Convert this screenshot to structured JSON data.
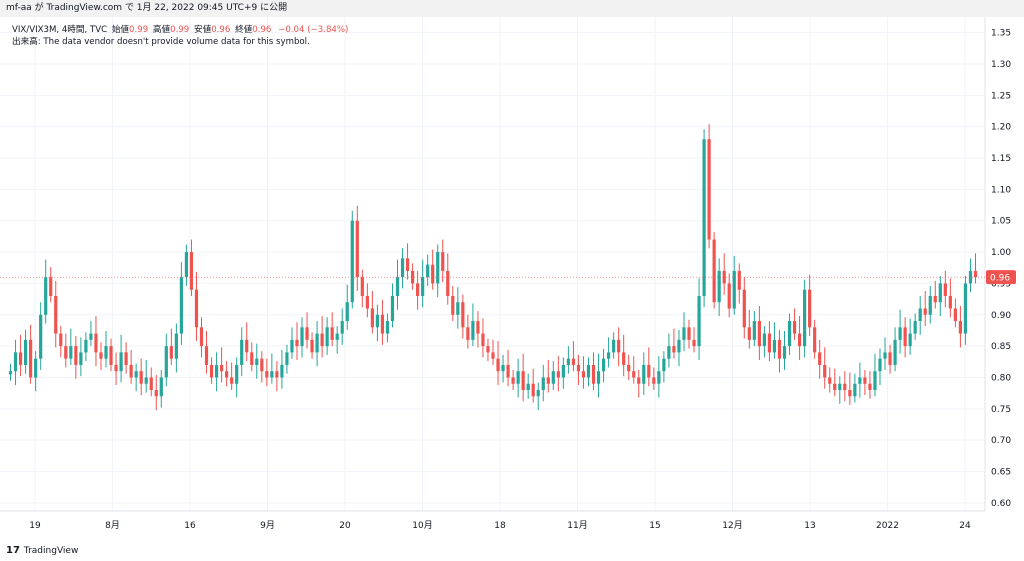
{
  "header": {
    "text": "mf-aa が TradingView.com で 1月 22, 2022 09:45 UTC+9 に公開"
  },
  "legend": {
    "symbol_line": "VIX/VIX3M, 4時間, TVC",
    "open_label": "始値",
    "open_value": "0.99",
    "high_label": "高値",
    "high_value": "0.99",
    "low_label": "安値",
    "low_value": "0.96",
    "close_label": "終値",
    "close_value": "0.96",
    "change": "−0.04 (−3.84%)",
    "volume_note": "出来高: The data vendor doesn't provide volume data for this symbol."
  },
  "footer": {
    "logo_mark": "17",
    "logo_text": "TradingView"
  },
  "colors": {
    "up": "#26a69a",
    "down": "#ef5350",
    "grid": "#f0f3fa",
    "axis_text": "#131722",
    "price_tag": "#ef5350"
  },
  "chart_data": {
    "type": "candlestick",
    "y_ticks": [
      "1.35",
      "1.30",
      "1.25",
      "1.20",
      "1.15",
      "1.10",
      "1.05",
      "1.00",
      "0.95",
      "0.90",
      "0.85",
      "0.80",
      "0.75",
      "0.70",
      "0.65",
      "0.60"
    ],
    "ylim": [
      0.587,
      1.375
    ],
    "x_ticks": [
      "19",
      "8月",
      "16",
      "9月",
      "20",
      "10月",
      "18",
      "11月",
      "15",
      "12月",
      "13",
      "2022",
      "24"
    ],
    "last_price": "0.96",
    "last_value": 0.96,
    "points": [
      [
        0,
        0.81
      ],
      [
        1,
        0.84
      ],
      [
        2,
        0.82
      ],
      [
        3,
        0.86
      ],
      [
        4,
        0.8
      ],
      [
        5,
        0.83
      ],
      [
        6,
        0.9
      ],
      [
        7,
        0.96
      ],
      [
        8,
        0.93
      ],
      [
        9,
        0.87
      ],
      [
        10,
        0.85
      ],
      [
        11,
        0.83
      ],
      [
        12,
        0.85
      ],
      [
        13,
        0.82
      ],
      [
        14,
        0.84
      ],
      [
        15,
        0.86
      ],
      [
        16,
        0.87
      ],
      [
        17,
        0.84
      ],
      [
        18,
        0.83
      ],
      [
        19,
        0.85
      ],
      [
        20,
        0.82
      ],
      [
        21,
        0.81
      ],
      [
        22,
        0.84
      ],
      [
        23,
        0.82
      ],
      [
        24,
        0.8
      ],
      [
        25,
        0.81
      ],
      [
        26,
        0.79
      ],
      [
        27,
        0.8
      ],
      [
        28,
        0.78
      ],
      [
        29,
        0.77
      ],
      [
        30,
        0.8
      ],
      [
        31,
        0.85
      ],
      [
        32,
        0.83
      ],
      [
        33,
        0.87
      ],
      [
        34,
        0.96
      ],
      [
        35,
        1.0
      ],
      [
        36,
        0.94
      ],
      [
        37,
        0.88
      ],
      [
        38,
        0.85
      ],
      [
        39,
        0.82
      ],
      [
        40,
        0.8
      ],
      [
        41,
        0.82
      ],
      [
        42,
        0.81
      ],
      [
        43,
        0.8
      ],
      [
        44,
        0.79
      ],
      [
        45,
        0.82
      ],
      [
        46,
        0.86
      ],
      [
        47,
        0.84
      ],
      [
        48,
        0.82
      ],
      [
        49,
        0.83
      ],
      [
        50,
        0.81
      ],
      [
        51,
        0.8
      ],
      [
        52,
        0.81
      ],
      [
        53,
        0.8
      ],
      [
        54,
        0.82
      ],
      [
        55,
        0.84
      ],
      [
        56,
        0.86
      ],
      [
        57,
        0.85
      ],
      [
        58,
        0.88
      ],
      [
        59,
        0.86
      ],
      [
        60,
        0.84
      ],
      [
        61,
        0.87
      ],
      [
        62,
        0.85
      ],
      [
        63,
        0.88
      ],
      [
        64,
        0.86
      ],
      [
        65,
        0.87
      ],
      [
        66,
        0.89
      ],
      [
        67,
        0.92
      ],
      [
        68,
        1.05
      ],
      [
        69,
        0.96
      ],
      [
        70,
        0.93
      ],
      [
        71,
        0.91
      ],
      [
        72,
        0.88
      ],
      [
        73,
        0.9
      ],
      [
        74,
        0.87
      ],
      [
        75,
        0.89
      ],
      [
        76,
        0.93
      ],
      [
        77,
        0.96
      ],
      [
        78,
        0.99
      ],
      [
        79,
        0.97
      ],
      [
        80,
        0.95
      ],
      [
        81,
        0.93
      ],
      [
        82,
        0.96
      ],
      [
        83,
        0.98
      ],
      [
        84,
        0.95
      ],
      [
        85,
        1.0
      ],
      [
        86,
        0.97
      ],
      [
        87,
        0.93
      ],
      [
        88,
        0.9
      ],
      [
        89,
        0.92
      ],
      [
        90,
        0.88
      ],
      [
        91,
        0.86
      ],
      [
        92,
        0.89
      ],
      [
        93,
        0.87
      ],
      [
        94,
        0.85
      ],
      [
        95,
        0.84
      ],
      [
        96,
        0.83
      ],
      [
        97,
        0.81
      ],
      [
        98,
        0.82
      ],
      [
        99,
        0.8
      ],
      [
        100,
        0.79
      ],
      [
        101,
        0.81
      ],
      [
        102,
        0.78
      ],
      [
        103,
        0.79
      ],
      [
        104,
        0.77
      ],
      [
        105,
        0.78
      ],
      [
        106,
        0.8
      ],
      [
        107,
        0.79
      ],
      [
        108,
        0.81
      ],
      [
        109,
        0.8
      ],
      [
        110,
        0.82
      ],
      [
        111,
        0.83
      ],
      [
        112,
        0.82
      ],
      [
        113,
        0.81
      ],
      [
        114,
        0.8
      ],
      [
        115,
        0.82
      ],
      [
        116,
        0.79
      ],
      [
        117,
        0.81
      ],
      [
        118,
        0.83
      ],
      [
        119,
        0.84
      ],
      [
        120,
        0.86
      ],
      [
        121,
        0.84
      ],
      [
        122,
        0.82
      ],
      [
        123,
        0.81
      ],
      [
        124,
        0.8
      ],
      [
        125,
        0.79
      ],
      [
        126,
        0.82
      ],
      [
        127,
        0.8
      ],
      [
        128,
        0.79
      ],
      [
        129,
        0.81
      ],
      [
        130,
        0.83
      ],
      [
        131,
        0.85
      ],
      [
        132,
        0.84
      ],
      [
        133,
        0.86
      ],
      [
        134,
        0.88
      ],
      [
        135,
        0.86
      ],
      [
        136,
        0.85
      ],
      [
        137,
        0.93
      ],
      [
        138,
        1.18
      ],
      [
        139,
        1.02
      ],
      [
        140,
        0.92
      ],
      [
        141,
        0.97
      ],
      [
        142,
        0.95
      ],
      [
        143,
        0.91
      ],
      [
        144,
        0.97
      ],
      [
        145,
        0.94
      ],
      [
        146,
        0.88
      ],
      [
        147,
        0.86
      ],
      [
        148,
        0.89
      ],
      [
        149,
        0.85
      ],
      [
        150,
        0.87
      ],
      [
        151,
        0.84
      ],
      [
        152,
        0.86
      ],
      [
        153,
        0.83
      ],
      [
        154,
        0.85
      ],
      [
        155,
        0.89
      ],
      [
        156,
        0.87
      ],
      [
        157,
        0.85
      ],
      [
        158,
        0.94
      ],
      [
        159,
        0.88
      ],
      [
        160,
        0.84
      ],
      [
        161,
        0.82
      ],
      [
        162,
        0.8
      ],
      [
        163,
        0.79
      ],
      [
        164,
        0.78
      ],
      [
        165,
        0.79
      ],
      [
        166,
        0.78
      ],
      [
        167,
        0.77
      ],
      [
        168,
        0.79
      ],
      [
        169,
        0.8
      ],
      [
        170,
        0.79
      ],
      [
        171,
        0.78
      ],
      [
        172,
        0.81
      ],
      [
        173,
        0.83
      ],
      [
        174,
        0.84
      ],
      [
        175,
        0.82
      ],
      [
        176,
        0.86
      ],
      [
        177,
        0.88
      ],
      [
        178,
        0.85
      ],
      [
        179,
        0.87
      ],
      [
        180,
        0.89
      ],
      [
        181,
        0.91
      ],
      [
        182,
        0.9
      ],
      [
        183,
        0.93
      ],
      [
        184,
        0.92
      ],
      [
        185,
        0.95
      ],
      [
        186,
        0.93
      ],
      [
        187,
        0.91
      ],
      [
        188,
        0.89
      ],
      [
        189,
        0.87
      ],
      [
        190,
        0.95
      ],
      [
        191,
        0.97
      ],
      [
        192,
        0.96
      ]
    ]
  }
}
